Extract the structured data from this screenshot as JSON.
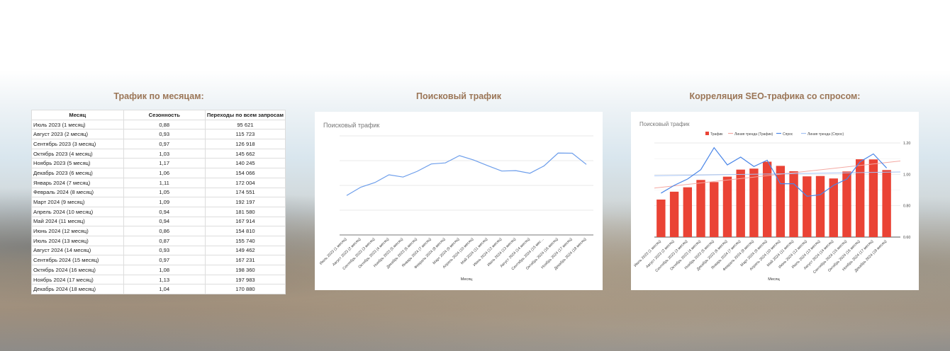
{
  "sections": {
    "table_title": "Трафик по месяцам:",
    "line_title": "Поисковый трафик",
    "combo_title": "Корреляция SEO-трафика со спросом:"
  },
  "table": {
    "headers": [
      "Месяц",
      "Сезонность",
      "Переходы по всем запросам"
    ],
    "rows": [
      [
        "Июль 2023 (1 месяц)",
        "0,88",
        "95 621"
      ],
      [
        "Август 2023 (2 месяц)",
        "0,93",
        "115 723"
      ],
      [
        "Сентябрь 2023 (3 месяц)",
        "0,97",
        "126 918"
      ],
      [
        "Октябрь 2023 (4 месяц)",
        "1,03",
        "145 662"
      ],
      [
        "Ноябрь 2023 (5 месяц)",
        "1,17",
        "140 245"
      ],
      [
        "Декабрь 2023 (6 месяц)",
        "1,06",
        "154 066"
      ],
      [
        "Январь 2024 (7 месяц)",
        "1,11",
        "172 004"
      ],
      [
        "Февраль 2024 (8 месяц)",
        "1,05",
        "174 551"
      ],
      [
        "Март 2024 (9 месяц)",
        "1,09",
        "192 197"
      ],
      [
        "Апрель 2024 (10 месяц)",
        "0,94",
        "181 580"
      ],
      [
        "Май 2024 (11 месяц)",
        "0,94",
        "167 914"
      ],
      [
        "Июнь 2024 (12 месяц)",
        "0,86",
        "154 810"
      ],
      [
        "Июль 2024 (13 месяц)",
        "0,87",
        "155 740"
      ],
      [
        "Август 2024 (14 месяц)",
        "0,93",
        "149 462"
      ],
      [
        "Сентябрь 2024 (15 месяц)",
        "0,97",
        "167 231"
      ],
      [
        "Октябрь 2024 (16 месяц)",
        "1,08",
        "198 360"
      ],
      [
        "Ноябрь 2024 (17 месяц)",
        "1,13",
        "197 983"
      ],
      [
        "Декабрь 2024 (18 месяц)",
        "1,04",
        "170 880"
      ]
    ]
  },
  "chart_data": [
    {
      "type": "line",
      "title": "Поисковый трафик",
      "xlabel": "Месяц",
      "ylabel": "",
      "ylim": [
        0,
        240000
      ],
      "grid": true,
      "y_tick_labels_shown": false,
      "color": "#6d9eeb",
      "categories": [
        "Июль 2023 (1 месяц)",
        "Август 2023 (2 месяц)",
        "Сентябрь 2023 (3 месяц)",
        "Октябрь 2023 (4 месяц)",
        "Ноябрь 2023 (5 месяц)",
        "Декабрь 2023 (6 месяц)",
        "Январь 2024 (7 месяц)",
        "Февраль 2024 (8 месяц)",
        "Март 2024 (9 месяц)",
        "Апрель 2024 (10 месяц)",
        "Май 2024 (11 месяц)",
        "Июнь 2024 (12 месяц)",
        "Июль 2024 (13 месяц)",
        "Август 2024 (14 месяц)",
        "Сентябрь 2024 (15 мес…",
        "Октябрь 2024 (16 месяц)",
        "Ноябрь 2024 (17 месяц)",
        "Декабрь 2024 (18 месяц)"
      ],
      "values": [
        95621,
        115723,
        126918,
        145662,
        140245,
        154066,
        172004,
        174551,
        192197,
        181580,
        167914,
        154810,
        155740,
        149462,
        167231,
        198360,
        197983,
        170880
      ]
    },
    {
      "type": "bar+line",
      "title": "Поисковый трафик",
      "xlabel": "Месяц",
      "grid": true,
      "legend": "top",
      "categories": [
        "Июль 2023 (1 месяц)",
        "Август 2023 (2 месяц)",
        "Сентябрь 2023 (3 месяц)",
        "Октябрь 2023 (4 месяц)",
        "Ноябрь 2023 (5 месяц)",
        "Декабрь 2023 (6 месяц)",
        "Январь 2024 (7 месяц)",
        "Февраль 2024 (8 месяц)",
        "Март 2024 (9 месяц)",
        "Апрель 2024 (10 месяц)",
        "Май 2024 (11 месяц)",
        "Июнь 2024 (12 месяц)",
        "Июль 2024 (13 месяц)",
        "Август 2024 (14 месяц)",
        "Сентябрь 2024 (15 месяц)",
        "Октябрь 2024 (16 месяц)",
        "Ноябрь 2024 (17 месяц)",
        "Декабрь 2024 (18 месяц)"
      ],
      "left_ylim": [
        0,
        240000
      ],
      "right_ylim": [
        0.6,
        1.2
      ],
      "right_ticks": [
        "0.60",
        "0.80",
        "1.00",
        "1.20"
      ],
      "series": [
        {
          "name": "Трафик",
          "type": "bar",
          "axis": "left",
          "color": "#ea4335",
          "values": [
            95621,
            115723,
            126918,
            145662,
            140245,
            154066,
            172004,
            174551,
            192197,
            181580,
            167914,
            154810,
            155740,
            149462,
            167231,
            198360,
            197983,
            170880
          ]
        },
        {
          "name": "Линия тренда (Трафик)",
          "type": "trendline",
          "axis": "left",
          "color": "#f4a9a3"
        },
        {
          "name": "Спрос",
          "type": "line",
          "axis": "right",
          "color": "#4a86e8",
          "values": [
            0.88,
            0.93,
            0.97,
            1.03,
            1.17,
            1.06,
            1.11,
            1.05,
            1.09,
            0.94,
            0.94,
            0.86,
            0.87,
            0.93,
            0.97,
            1.08,
            1.13,
            1.04
          ]
        },
        {
          "name": "Линия тренда (Спрос)",
          "type": "trendline",
          "axis": "right",
          "color": "#a4c2f4"
        }
      ]
    }
  ]
}
